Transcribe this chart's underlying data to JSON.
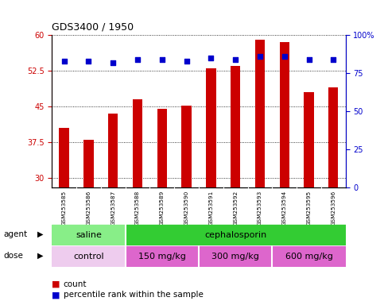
{
  "title": "GDS3400 / 1950",
  "samples": [
    "GSM253585",
    "GSM253586",
    "GSM253587",
    "GSM253588",
    "GSM253589",
    "GSM253590",
    "GSM253591",
    "GSM253592",
    "GSM253593",
    "GSM253594",
    "GSM253595",
    "GSM253596"
  ],
  "counts": [
    40.5,
    38.0,
    43.5,
    46.5,
    44.5,
    45.2,
    53.0,
    53.5,
    59.0,
    58.5,
    48.0,
    49.0
  ],
  "percentiles": [
    83,
    83,
    82,
    84,
    84,
    83,
    85,
    84,
    86,
    86,
    84,
    84
  ],
  "ylim_left": [
    28,
    60
  ],
  "ylim_right": [
    0,
    100
  ],
  "yticks_left": [
    30,
    37.5,
    45,
    52.5,
    60
  ],
  "ytick_labels_left": [
    "30",
    "37.5",
    "45",
    "52.5",
    "60"
  ],
  "yticks_right": [
    0,
    25,
    50,
    75,
    100
  ],
  "ytick_labels_right": [
    "0",
    "25",
    "50",
    "75",
    "100%"
  ],
  "bar_color": "#cc0000",
  "dot_color": "#0000cc",
  "agent_groups": [
    {
      "label": "saline",
      "start": 0,
      "end": 3,
      "color": "#88ee88"
    },
    {
      "label": "cephalosporin",
      "start": 3,
      "end": 12,
      "color": "#33cc33"
    }
  ],
  "dose_groups": [
    {
      "label": "control",
      "start": 0,
      "end": 3,
      "color": "#eeccee"
    },
    {
      "label": "150 mg/kg",
      "start": 3,
      "end": 6,
      "color": "#dd66cc"
    },
    {
      "label": "300 mg/kg",
      "start": 6,
      "end": 9,
      "color": "#dd66cc"
    },
    {
      "label": "600 mg/kg",
      "start": 9,
      "end": 12,
      "color": "#dd66cc"
    }
  ],
  "bg_color": "#ffffff",
  "sample_bg": "#cccccc"
}
